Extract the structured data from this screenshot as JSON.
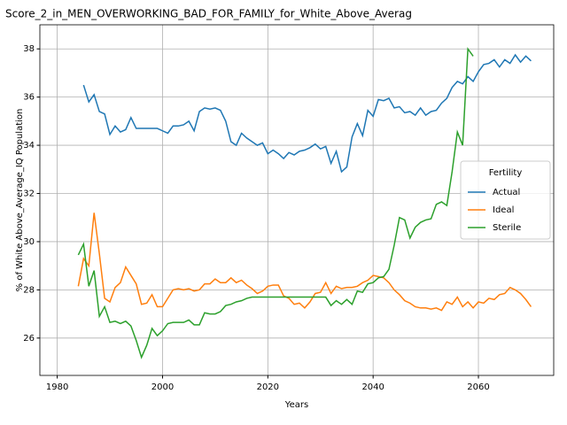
{
  "chart_data": {
    "type": "line",
    "title": "Score_2_in_MEN_OVERWORKING_BAD_FOR_FAMILY_for_White_Above_Averag",
    "xlabel": "Years",
    "ylabel": "% of White Above_Average_IQ Population",
    "x": [
      1984,
      1985,
      1986,
      1987,
      1988,
      1989,
      1990,
      1991,
      1992,
      1993,
      1994,
      1995,
      1996,
      1997,
      1998,
      1999,
      2000,
      2001,
      2002,
      2003,
      2004,
      2005,
      2006,
      2007,
      2008,
      2009,
      2010,
      2011,
      2012,
      2013,
      2014,
      2015,
      2016,
      2017,
      2018,
      2019,
      2020,
      2021,
      2022,
      2023,
      2024,
      2025,
      2026,
      2027,
      2028,
      2029,
      2030,
      2031,
      2032,
      2033,
      2034,
      2035,
      2036,
      2037,
      2038,
      2039,
      2040,
      2041,
      2042,
      2043,
      2044,
      2045,
      2046,
      2047,
      2048,
      2049,
      2050,
      2051,
      2052,
      2053,
      2054,
      2055,
      2056,
      2057,
      2058,
      2059,
      2060,
      2061,
      2062,
      2063,
      2064,
      2065,
      2066,
      2067,
      2068,
      2069,
      2070
    ],
    "series": [
      {
        "name": "Actual",
        "color": "#1f77b4",
        "values": [
          null,
          36.5,
          35.8,
          36.1,
          35.4,
          35.3,
          34.45,
          34.8,
          34.55,
          34.65,
          35.15,
          34.7,
          34.7,
          34.7,
          34.7,
          34.7,
          34.6,
          34.5,
          34.8,
          34.8,
          34.85,
          35.0,
          34.6,
          35.4,
          35.55,
          35.5,
          35.55,
          35.45,
          35.0,
          34.15,
          34.0,
          34.5,
          34.3,
          34.15,
          34.0,
          34.1,
          33.65,
          33.8,
          33.65,
          33.45,
          33.7,
          33.6,
          33.75,
          33.8,
          33.9,
          34.05,
          33.85,
          33.95,
          33.25,
          33.75,
          32.9,
          33.1,
          34.35,
          34.9,
          34.4,
          35.45,
          35.2,
          35.9,
          35.85,
          35.95,
          35.55,
          35.6,
          35.35,
          35.4,
          35.25,
          35.55,
          35.25,
          35.4,
          35.45,
          35.75,
          35.95,
          36.4,
          36.65,
          36.55,
          36.85,
          36.65,
          37.05,
          37.35,
          37.4,
          37.55,
          37.25,
          37.55,
          37.4,
          37.75,
          37.45,
          37.7,
          37.5
        ]
      },
      {
        "name": "Ideal",
        "color": "#ff7f0e",
        "values": [
          28.15,
          29.3,
          29.0,
          31.2,
          29.5,
          27.65,
          27.5,
          28.1,
          28.3,
          28.95,
          28.6,
          28.25,
          27.4,
          27.45,
          27.8,
          27.3,
          27.3,
          27.65,
          28.0,
          28.05,
          28.0,
          28.05,
          27.95,
          28.0,
          28.25,
          28.25,
          28.45,
          28.3,
          28.3,
          28.5,
          28.3,
          28.4,
          28.2,
          28.05,
          27.85,
          27.95,
          28.15,
          28.2,
          28.2,
          27.75,
          27.65,
          27.4,
          27.45,
          27.25,
          27.5,
          27.85,
          27.9,
          28.3,
          27.85,
          28.15,
          28.05,
          28.1,
          28.1,
          28.15,
          28.3,
          28.4,
          28.6,
          28.55,
          28.5,
          28.3,
          28.0,
          27.8,
          27.55,
          27.45,
          27.3,
          27.25,
          27.25,
          27.2,
          27.25,
          27.15,
          27.5,
          27.4,
          27.7,
          27.3,
          27.5,
          27.25,
          27.5,
          27.45,
          27.65,
          27.6,
          27.8,
          27.85,
          28.1,
          28.0,
          27.85,
          27.6,
          27.3
        ]
      },
      {
        "name": "Sterile",
        "color": "#2ca02c",
        "values": [
          29.45,
          29.9,
          28.15,
          28.8,
          26.9,
          27.3,
          26.65,
          26.7,
          26.6,
          26.7,
          26.5,
          25.9,
          25.2,
          25.7,
          26.4,
          26.1,
          26.3,
          26.6,
          26.65,
          26.65,
          26.65,
          26.75,
          26.55,
          26.55,
          27.05,
          27.0,
          27.0,
          27.1,
          27.35,
          27.4,
          27.5,
          27.55,
          27.65,
          27.7,
          27.7,
          27.7,
          27.7,
          27.7,
          27.7,
          27.7,
          27.7,
          27.7,
          27.7,
          27.7,
          27.7,
          27.7,
          27.7,
          27.7,
          27.35,
          27.55,
          27.4,
          27.6,
          27.4,
          27.95,
          27.9,
          28.25,
          28.3,
          28.5,
          28.55,
          28.85,
          29.85,
          31.0,
          30.9,
          30.15,
          30.6,
          30.8,
          30.9,
          30.95,
          31.55,
          31.65,
          31.5,
          32.9,
          34.55,
          34.0,
          38.0,
          37.7,
          null,
          null,
          null,
          null,
          null,
          null,
          null,
          null,
          null,
          null,
          null
        ]
      }
    ],
    "xlim": [
      1976.7,
      2074.3
    ],
    "ylim": [
      24.45,
      39.0
    ],
    "xticks": [
      1980,
      2000,
      2020,
      2040,
      2060
    ],
    "yticks": [
      26,
      28,
      30,
      32,
      34,
      36,
      38
    ],
    "grid": true,
    "legend_title": "Fertility",
    "legend_position": "center right"
  }
}
